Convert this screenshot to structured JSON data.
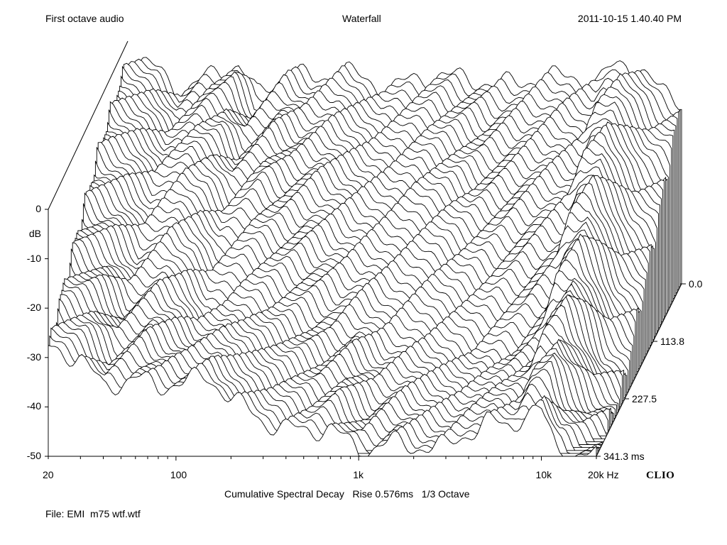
{
  "header": {
    "left": "First octave audio",
    "center": "Waterfall",
    "right": "2011-10-15 1.40.40 PM"
  },
  "footer": {
    "caption": "Cumulative Spectral Decay   Rise 0.576ms   1/3 Octave",
    "file": "File: EMI  m75 wtf.wtf",
    "brand": "CLIO"
  },
  "chart_data": {
    "type": "area",
    "title": "Waterfall",
    "subtitle": "Cumulative Spectral Decay   Rise 0.576ms   1/3 Octave",
    "ylabel": "dB",
    "xunit": "Hz",
    "zunit": "ms",
    "xscale": "log",
    "xlim": [
      20,
      20000
    ],
    "ylim": [
      -50,
      0
    ],
    "zlim": [
      0.0,
      341.3
    ],
    "x_ticks": [
      {
        "value": 20,
        "label": "20"
      },
      {
        "value": 100,
        "label": "100"
      },
      {
        "value": 1000,
        "label": "1k"
      },
      {
        "value": 10000,
        "label": "10k"
      },
      {
        "value": 20000,
        "label": "20k"
      }
    ],
    "y_ticks": [
      {
        "value": 0,
        "label": "0"
      },
      {
        "value": -10,
        "label": "-10"
      },
      {
        "value": -20,
        "label": "-20"
      },
      {
        "value": -30,
        "label": "-30"
      },
      {
        "value": -40,
        "label": "-40"
      },
      {
        "value": -50,
        "label": "-50"
      }
    ],
    "z_ticks": [
      {
        "value": 0.0,
        "label": "0.0"
      },
      {
        "value": 113.8,
        "label": "113.8"
      },
      {
        "value": 227.5,
        "label": "227.5"
      },
      {
        "value": 341.3,
        "label": "341.3"
      }
    ],
    "slices": 60,
    "series": [
      {
        "time_ms": 0.0,
        "freq": [
          20,
          30,
          40,
          60,
          80,
          100,
          150,
          200,
          300,
          500,
          700,
          1000,
          1500,
          2000,
          3000,
          5000,
          7000,
          8000,
          10000,
          12000,
          15000,
          20000
        ],
        "db": [
          -4,
          -6,
          -11,
          -6,
          -5,
          -11,
          -6,
          -8,
          -6,
          -10,
          -8,
          -7,
          -8,
          -9,
          -8,
          -7,
          -9,
          -6,
          -4,
          -6,
          -10,
          -12
        ]
      },
      {
        "time_ms": 113.8,
        "freq": [
          20,
          30,
          40,
          60,
          80,
          100,
          150,
          200,
          300,
          500,
          700,
          1000,
          1500,
          2000,
          3000,
          5000,
          7000,
          8000,
          10000,
          12000,
          15000,
          20000
        ],
        "db": [
          -9,
          -12,
          -16,
          -12,
          -14,
          -18,
          -15,
          -17,
          -17,
          -20,
          -21,
          -20,
          -21,
          -23,
          -23,
          -22,
          -22,
          -16,
          -14,
          -19,
          -26,
          -30
        ]
      },
      {
        "time_ms": 227.5,
        "freq": [
          20,
          30,
          40,
          60,
          80,
          100,
          150,
          200,
          300,
          500,
          700,
          1000,
          1500,
          2000,
          3000,
          5000,
          7000,
          8000,
          10000,
          12000,
          15000,
          20000
        ],
        "db": [
          -18,
          -22,
          -28,
          -25,
          -28,
          -33,
          -32,
          -32,
          -34,
          -37,
          -36,
          -39,
          -39,
          -40,
          -42,
          -41,
          -38,
          -31,
          -28,
          -33,
          -42,
          -46
        ]
      },
      {
        "time_ms": 341.3,
        "freq": [
          20,
          30,
          40,
          60,
          80,
          100,
          150,
          200,
          300,
          500,
          700,
          1000,
          1500,
          2000,
          3000,
          5000,
          7000,
          8000,
          10000,
          12000,
          15000,
          20000
        ],
        "db": [
          -28,
          -30,
          -36,
          -34,
          -36,
          -35,
          -34,
          -38,
          -43,
          -45,
          -44,
          -49,
          -47,
          -48,
          -48,
          -43,
          -44,
          -41,
          -41,
          -48,
          -50,
          -50
        ]
      }
    ]
  }
}
